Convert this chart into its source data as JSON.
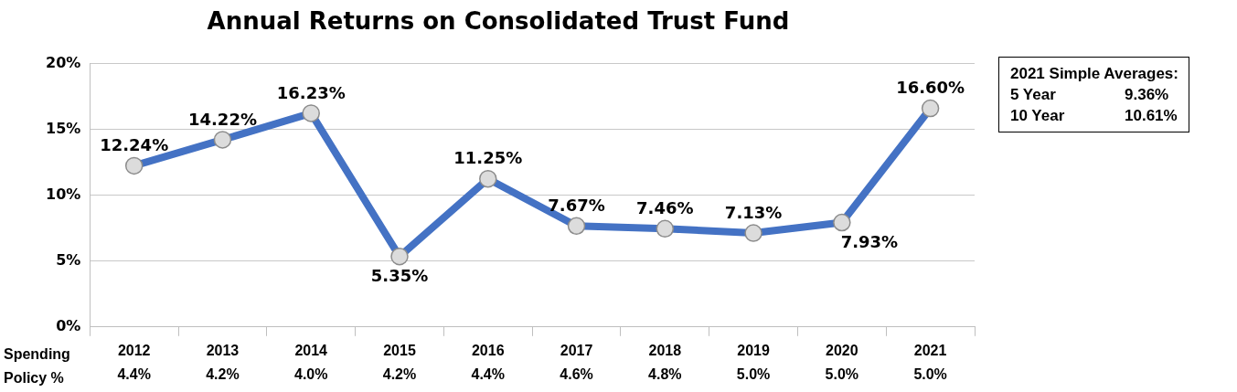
{
  "chart_data": {
    "type": "line",
    "title": "Annual Returns on Consolidated Trust Fund",
    "xlabel": "Spending\nPolicy %",
    "categories": [
      "2012\n4.4%",
      "2013\n4.2%",
      "2014\n4.0%",
      "2015\n4.2%",
      "2016\n4.4%",
      "2017\n4.6%",
      "2018\n4.8%",
      "2019\n5.0%",
      "2020\n5.0%",
      "2021\n5.0%"
    ],
    "series": [
      {
        "color": "#4472c4",
        "values": [
          12.24,
          14.22,
          16.23,
          5.35,
          11.25,
          7.67,
          7.46,
          7.13,
          7.93,
          16.6
        ],
        "value_labels": [
          "12.24%",
          "14.22%",
          "16.23%",
          "5.35%",
          "11.25%",
          "7.67%",
          "7.46%",
          "7.13%",
          "7.93%",
          "16.60%"
        ]
      }
    ],
    "ylim": [
      0,
      20
    ],
    "yticks": [
      {
        "value": 0,
        "label": "0%"
      },
      {
        "value": 5,
        "label": "5%"
      },
      {
        "value": 10,
        "label": "10%"
      },
      {
        "value": 15,
        "label": "15%"
      },
      {
        "value": 20,
        "label": "20%"
      }
    ],
    "grid": "y",
    "legend": false,
    "marker": "circle",
    "line_style": "solid",
    "annotations": [
      "2021 Simple Averages:",
      "5 Year\t9.36%",
      "10 Year\t10.61%"
    ]
  }
}
